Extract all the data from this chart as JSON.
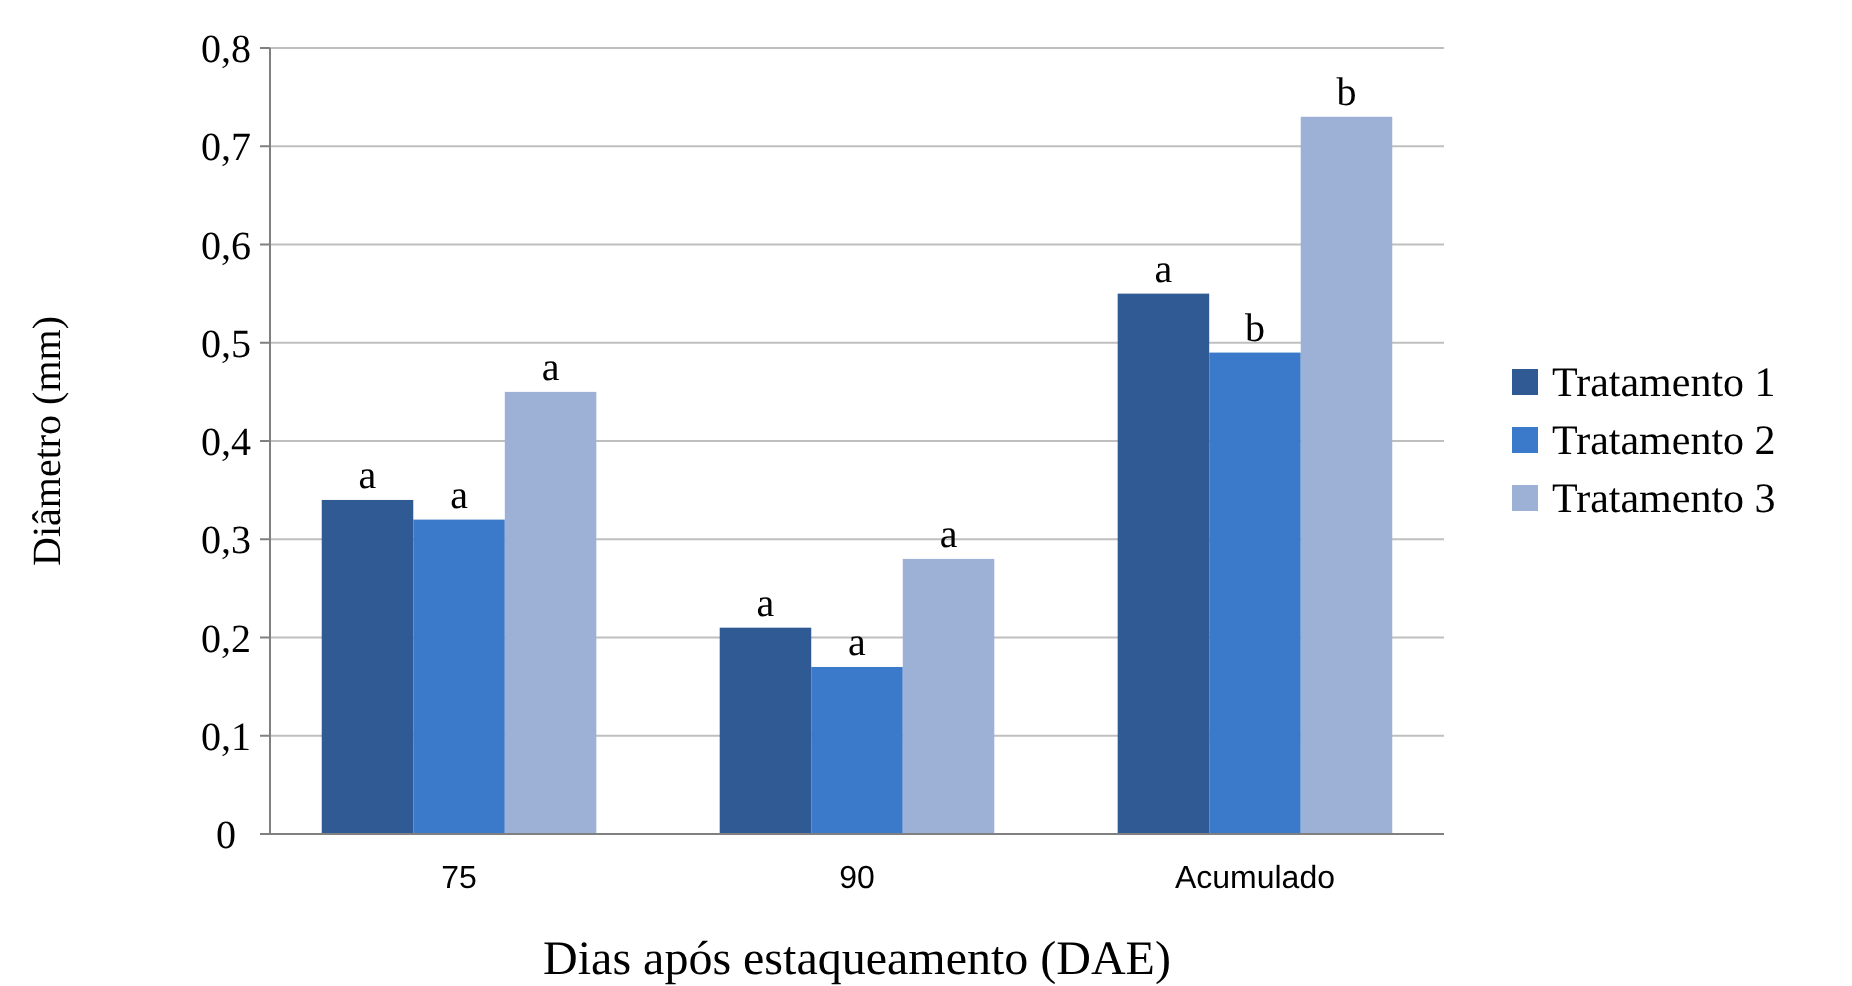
{
  "chart_data": {
    "type": "bar",
    "xlabel": "Dias após estaqueamento (DAE)",
    "ylabel": "Diâmetro (mm)",
    "categories": [
      "75",
      "90",
      "Acumulado"
    ],
    "series": [
      {
        "name": "Tratamento 1",
        "color": "#2f5a94",
        "values": [
          0.34,
          0.21,
          0.55
        ]
      },
      {
        "name": "Tratamento 2",
        "color": "#3b7acb",
        "values": [
          0.32,
          0.17,
          0.49
        ]
      },
      {
        "name": "Tratamento 3",
        "color": "#9db1d6",
        "values": [
          0.45,
          0.28,
          0.73
        ]
      }
    ],
    "ylim": [
      0,
      0.8
    ],
    "yticks": [
      0,
      {
        "value": 0.1,
        "label": "0,1"
      },
      {
        "value": 0.2,
        "label": "0,2"
      },
      {
        "value": 0.3,
        "label": "0,3"
      },
      {
        "value": 0.4,
        "label": "0,4"
      },
      {
        "value": 0.5,
        "label": "0,5"
      },
      {
        "value": 0.6,
        "label": "0,6"
      },
      {
        "value": 0.7,
        "label": "0,7"
      },
      {
        "value": 0.8,
        "label": "0,8"
      }
    ],
    "grid": "y",
    "legend": "right",
    "annotations": [
      "a",
      "a",
      "a",
      "a",
      "a",
      "a",
      "a",
      "b",
      "b"
    ]
  }
}
